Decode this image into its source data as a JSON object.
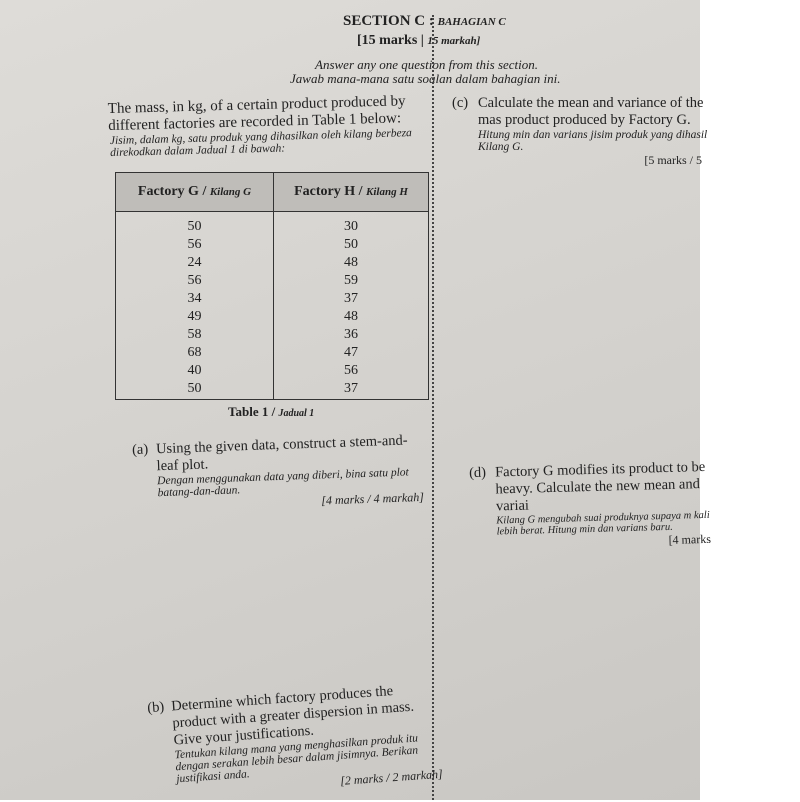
{
  "header": {
    "section": "SECTION C",
    "section_ms": "BAHAGIAN C",
    "marks": "[15 marks",
    "marks_ms": "15 markah]",
    "instruction": "Answer any one question from this section.",
    "instruction_ms": "Jawab mana-mana satu soalan dalam bahagian ini."
  },
  "intro": {
    "en": "The mass, in kg, of a certain product produced by different factories are recorded in Table 1 below:",
    "ms": "Jisim, dalam kg, satu produk yang dihasilkan oleh kilang berbeza direkodkan dalam Jadual 1 di bawah:"
  },
  "table": {
    "headers": [
      {
        "en": "Factory G /",
        "ms": "Kilang G"
      },
      {
        "en": "Factory H /",
        "ms": "Kilang H"
      }
    ],
    "factory_g": [
      "50",
      "56",
      "24",
      "56",
      "34",
      "49",
      "58",
      "68",
      "40",
      "50"
    ],
    "factory_h": [
      "30",
      "50",
      "48",
      "59",
      "37",
      "48",
      "36",
      "47",
      "56",
      "37"
    ],
    "caption": "Table 1 /",
    "caption_ms": "Jadual 1"
  },
  "questions": {
    "a": {
      "label": "(a)",
      "en": "Using the given data, construct a stem-and-leaf plot.",
      "ms": "Dengan menggunakan data yang diberi, bina satu plot batang-dan-daun.",
      "marks": "[4 marks / 4 markah]"
    },
    "b": {
      "label": "(b)",
      "en": "Determine which factory produces the product with a greater dispersion in mass. Give your justifications.",
      "ms": "Tentukan kilang mana yang menghasilkan produk itu dengan serakan lebih besar dalam jisimnya. Berikan justifikasi anda.",
      "marks": "[2 marks / 2 markah]"
    },
    "c": {
      "label": "(c)",
      "en": "Calculate the mean and variance of the mas product produced by Factory G.",
      "ms": "Hitung min dan varians jisim produk yang dihasil Kilang G.",
      "marks": "[5 marks / 5"
    },
    "d": {
      "label": "(d)",
      "en": "Factory G modifies its product to be heavy. Calculate the new mean and variai",
      "ms": "Kilang G mengubah suai produknya supaya m kali lebih berat. Hitung min dan varians baru.",
      "marks": "[4 marks"
    }
  }
}
